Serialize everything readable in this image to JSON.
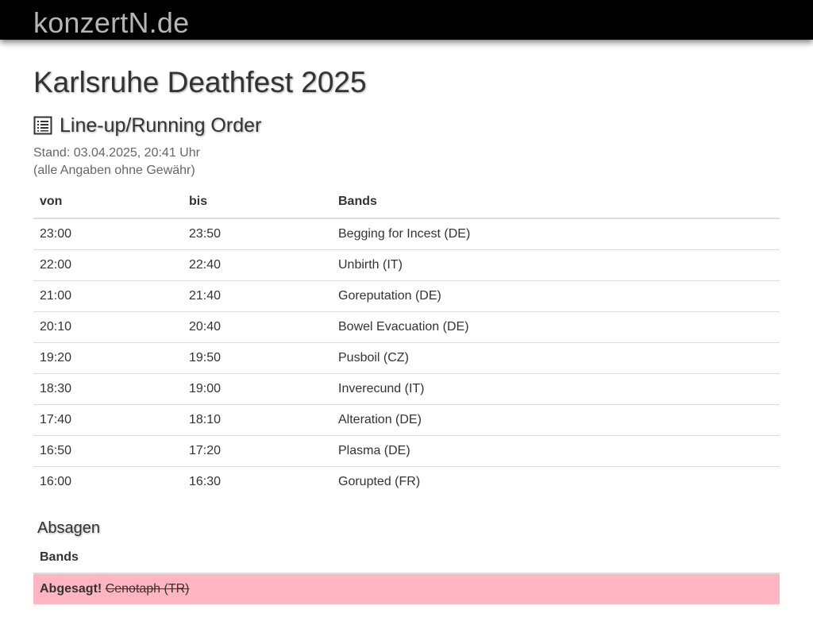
{
  "site": {
    "brand": "konzertN.de"
  },
  "page": {
    "title": "Karlsruhe Deathfest 2025",
    "section_title": "Line-up/Running Order",
    "section_icon": "list-icon",
    "stand": "Stand: 03.04.2025, 20:41 Uhr",
    "disclaimer": "(alle Angaben ohne Gewähr)"
  },
  "lineup": {
    "headers": {
      "von": "von",
      "bis": "bis",
      "bands": "Bands"
    },
    "rows": [
      {
        "von": "23:00",
        "bis": "23:50",
        "band": "Begging for Incest (DE)"
      },
      {
        "von": "22:00",
        "bis": "22:40",
        "band": "Unbirth (IT)"
      },
      {
        "von": "21:00",
        "bis": "21:40",
        "band": "Goreputation (DE)"
      },
      {
        "von": "20:10",
        "bis": "20:40",
        "band": "Bowel Evacuation (DE)"
      },
      {
        "von": "19:20",
        "bis": "19:50",
        "band": "Pusboil (CZ)"
      },
      {
        "von": "18:30",
        "bis": "19:00",
        "band": "Inverecund (IT)"
      },
      {
        "von": "17:40",
        "bis": "18:10",
        "band": "Alteration (DE)"
      },
      {
        "von": "16:50",
        "bis": "17:20",
        "band": "Plasma (DE)"
      },
      {
        "von": "16:00",
        "bis": "16:30",
        "band": "Gorupted (FR)"
      }
    ]
  },
  "cancellations": {
    "title": "Absagen",
    "header": "Bands",
    "rows": [
      {
        "label": "Abgesagt!",
        "band": "Cenotaph (TR)"
      }
    ]
  },
  "colors": {
    "topbar": "#000000",
    "brand_text": "#b5b5b5",
    "cancel_row": "#ffb6c1"
  }
}
